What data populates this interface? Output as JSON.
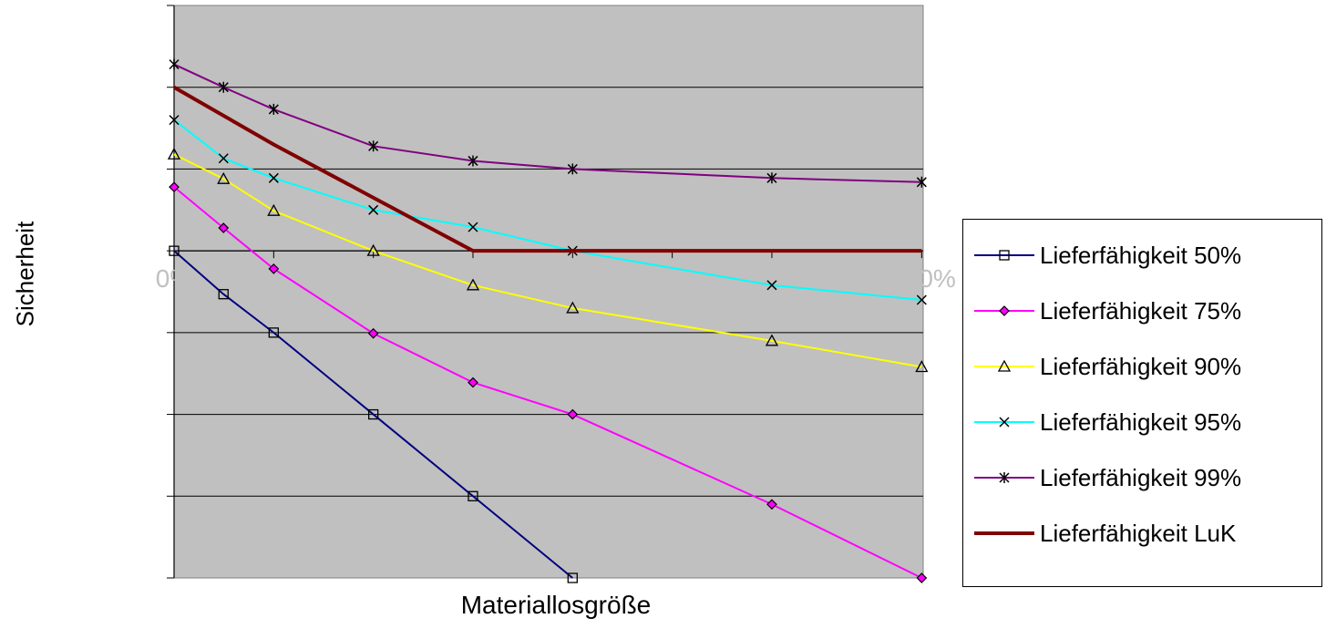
{
  "chart_data": {
    "type": "line",
    "title": "",
    "xlabel": "Materiallosgröße",
    "ylabel": "Sicherheit",
    "x_tick_labels": [
      {
        "x": 0,
        "text": "0%"
      },
      {
        "x": 100,
        "text": "100%"
      }
    ],
    "xlim": [
      0,
      100
    ],
    "ylim": [
      0,
      7
    ],
    "grid": true,
    "legend_position": "right",
    "plot_background": "#c0c0c0",
    "series": [
      {
        "name": "Lieferfähigkeit 50%",
        "color": "#000080",
        "marker": "square",
        "x": [
          0,
          6.6,
          13.3,
          26.6,
          39.9,
          53.2
        ],
        "y": [
          4,
          3.47,
          3,
          2,
          1,
          0
        ]
      },
      {
        "name": "Lieferfähigkeit 75%",
        "color": "#ff00ff",
        "marker": "diamond",
        "x": [
          0,
          6.6,
          13.3,
          26.6,
          39.9,
          53.2,
          79.8,
          99.8
        ],
        "y": [
          4.78,
          4.28,
          3.78,
          2.99,
          2.39,
          2,
          0.9,
          0
        ]
      },
      {
        "name": "Lieferfähigkeit 90%",
        "color": "#ffff00",
        "marker": "triangle",
        "x": [
          0,
          6.6,
          13.3,
          26.6,
          39.9,
          53.2,
          79.8,
          99.8
        ],
        "y": [
          5.18,
          4.88,
          4.49,
          4,
          3.58,
          3.3,
          2.9,
          2.58
        ]
      },
      {
        "name": "Lieferfähigkeit 95%",
        "color": "#00ffff",
        "marker": "x",
        "x": [
          0,
          6.6,
          13.3,
          26.6,
          39.9,
          53.2,
          79.8,
          99.8
        ],
        "y": [
          5.6,
          5.13,
          4.89,
          4.5,
          4.29,
          4,
          3.58,
          3.4
        ]
      },
      {
        "name": "Lieferfähigkeit 99%",
        "color": "#800080",
        "marker": "star",
        "x": [
          0,
          6.6,
          13.3,
          26.6,
          39.9,
          53.2,
          79.8,
          99.8
        ],
        "y": [
          6.28,
          6,
          5.73,
          5.28,
          5.1,
          5,
          4.89,
          4.84
        ]
      },
      {
        "name": "Lieferfähigkeit LuK",
        "color": "#800000",
        "marker": "none",
        "x": [
          0,
          13.3,
          26.6,
          39.9,
          53.2,
          79.8,
          99.8
        ],
        "y": [
          6,
          5.3,
          4.65,
          4,
          4,
          4,
          4
        ]
      }
    ]
  }
}
